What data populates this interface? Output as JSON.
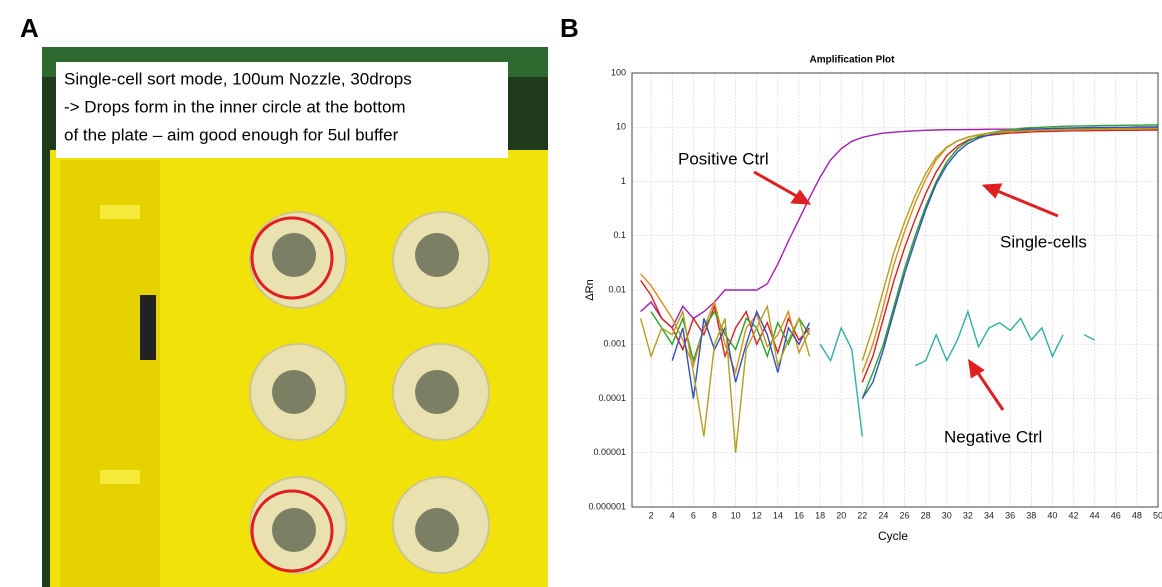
{
  "panel_a": {
    "label": "A",
    "caption_lines": [
      "Single-cell sort mode, 100um Nozzle, 30drops",
      "-> Drops form in the inner circle at the bottom",
      "of the plate – aim good enough for 5ul buffer"
    ]
  },
  "panel_b_label": "B",
  "chart_data": {
    "type": "line",
    "title": "Amplification Plot",
    "x_label": "Cycle",
    "y_label": "ΔRn",
    "log_y": true,
    "grid": true,
    "xlim": [
      0,
      50
    ],
    "xticks": [
      2,
      4,
      6,
      8,
      10,
      12,
      14,
      16,
      18,
      20,
      22,
      24,
      26,
      28,
      30,
      32,
      34,
      36,
      38,
      40,
      42,
      44,
      46,
      48,
      50
    ],
    "ylim": [
      1e-06,
      100
    ],
    "yticks": [
      1e-06,
      1e-05,
      0.0001,
      0.001,
      0.01,
      0.1,
      1,
      10,
      100
    ],
    "x": [
      1,
      2,
      3,
      4,
      5,
      6,
      7,
      8,
      9,
      10,
      11,
      12,
      13,
      14,
      15,
      16,
      17,
      18,
      19,
      20,
      21,
      22,
      23,
      24,
      25,
      26,
      27,
      28,
      29,
      30,
      31,
      32,
      33,
      34,
      35,
      36,
      37,
      38,
      39,
      40,
      41,
      42,
      43,
      44,
      45,
      46,
      47,
      48,
      49,
      50
    ],
    "series": [
      {
        "color": "#a020b0",
        "values": [
          0.004,
          0.006,
          0.003,
          0.002,
          0.005,
          0.003,
          0.004,
          0.006,
          0.01,
          0.01,
          0.01,
          0.01,
          0.013,
          0.03,
          0.08,
          0.2,
          0.5,
          1.2,
          2.5,
          4,
          5.5,
          6.5,
          7.2,
          7.8,
          8.1,
          8.4,
          8.6,
          8.8,
          8.9,
          9,
          9,
          9.1,
          9.1,
          9.2,
          9.2,
          9.2,
          9.3,
          9.3,
          9.3,
          9.3,
          9.4,
          9.4,
          9.4,
          9.4,
          9.4,
          9.5,
          9.5,
          9.5,
          9.5,
          9.5
        ]
      },
      {
        "color": "#d62020",
        "values": [
          0.015,
          0.008,
          0.003,
          0.002,
          0.0008,
          0.003,
          0.0015,
          0.005,
          0.0006,
          0.002,
          0.004,
          0.001,
          0.0025,
          0.0007,
          0.003,
          0.0012,
          0.002,
          null,
          null,
          null,
          null,
          0.0002,
          0.0006,
          0.003,
          0.015,
          0.06,
          0.2,
          0.6,
          1.5,
          3,
          4.5,
          5.8,
          6.6,
          7.1,
          7.5,
          7.8,
          8,
          8.2,
          8.3,
          8.4,
          8.5,
          8.6,
          8.6,
          8.7,
          8.7,
          8.8,
          8.8,
          8.8,
          8.9,
          8.9
        ]
      },
      {
        "color": "#2ca02c",
        "values": [
          null,
          0.004,
          0.002,
          0.001,
          0.003,
          0.0005,
          0.002,
          0.004,
          0.0015,
          0.0008,
          0.003,
          0.002,
          0.0006,
          0.0025,
          0.001,
          0.003,
          0.0015,
          null,
          null,
          null,
          null,
          0.0001,
          0.0003,
          0.001,
          0.005,
          0.025,
          0.1,
          0.35,
          1,
          2.3,
          4,
          5.5,
          6.8,
          7.8,
          8.5,
          9,
          9.5,
          9.8,
          10,
          10.2,
          10.4,
          10.5,
          10.6,
          10.7,
          10.8,
          10.8,
          10.9,
          10.9,
          11,
          11
        ]
      },
      {
        "color": "#e08a1e",
        "values": [
          0.02,
          0.012,
          0.006,
          0.003,
          0.0012,
          0.0004,
          0.002,
          0.006,
          0.001,
          0.0003,
          0.002,
          0.0035,
          0.0009,
          0.0015,
          0.004,
          0.0007,
          0.0018,
          null,
          null,
          null,
          null,
          0.0003,
          0.001,
          0.005,
          0.03,
          0.12,
          0.4,
          1.1,
          2.5,
          4.2,
          5.6,
          6.6,
          7.3,
          7.8,
          8.2,
          8.5,
          8.8,
          9,
          9.2,
          9.3,
          9.4,
          9.5,
          9.6,
          9.6,
          9.7,
          9.7,
          9.8,
          9.8,
          9.8,
          9.9
        ]
      },
      {
        "color": "#3050c0",
        "values": [
          null,
          null,
          null,
          0.0005,
          0.002,
          0.0001,
          0.003,
          0.0008,
          0.002,
          0.0002,
          0.001,
          0.004,
          0.0015,
          0.0003,
          0.002,
          0.001,
          0.0025,
          null,
          null,
          null,
          null,
          0.0001,
          0.0002,
          0.0008,
          0.004,
          0.02,
          0.08,
          0.3,
          0.9,
          2,
          3.5,
          5,
          6.3,
          7.2,
          7.9,
          8.4,
          8.8,
          9.1,
          9.3,
          9.5,
          9.6,
          9.7,
          9.8,
          9.9,
          9.9,
          10,
          10,
          10.1,
          10.1,
          10.1
        ]
      },
      {
        "color": "#b0a020",
        "values": [
          0.003,
          0.0006,
          0.002,
          0.0015,
          0.004,
          0.0003,
          2e-05,
          0.001,
          0.003,
          1e-05,
          0.0008,
          0.002,
          0.005,
          0.0004,
          0.0012,
          0.003,
          0.0006,
          null,
          null,
          null,
          null,
          0.0005,
          0.002,
          0.01,
          0.05,
          0.18,
          0.55,
          1.4,
          2.8,
          4.3,
          5.6,
          6.5,
          7.2,
          7.7,
          8,
          8.3,
          8.5,
          8.7,
          8.8,
          8.9,
          9,
          9.1,
          9.1,
          9.2,
          9.2,
          9.3,
          9.3,
          9.3,
          9.4,
          9.4
        ]
      },
      {
        "color": "#30b0a0",
        "values": [
          null,
          null,
          null,
          null,
          null,
          null,
          null,
          null,
          null,
          null,
          null,
          null,
          null,
          null,
          null,
          null,
          null,
          0.001,
          0.0005,
          0.002,
          0.0008,
          2e-05,
          null,
          null,
          null,
          null,
          0.0004,
          0.0005,
          0.0015,
          0.0005,
          0.0012,
          0.004,
          0.0009,
          0.002,
          0.0025,
          0.0018,
          0.003,
          0.0012,
          0.002,
          0.0006,
          0.0015,
          null,
          0.0015,
          0.0012,
          null,
          null,
          null,
          null,
          null,
          null
        ]
      }
    ],
    "annotations": [
      {
        "text": "Positive Ctrl"
      },
      {
        "text": "Single-cells"
      },
      {
        "text": "Negative Ctrl"
      }
    ]
  }
}
